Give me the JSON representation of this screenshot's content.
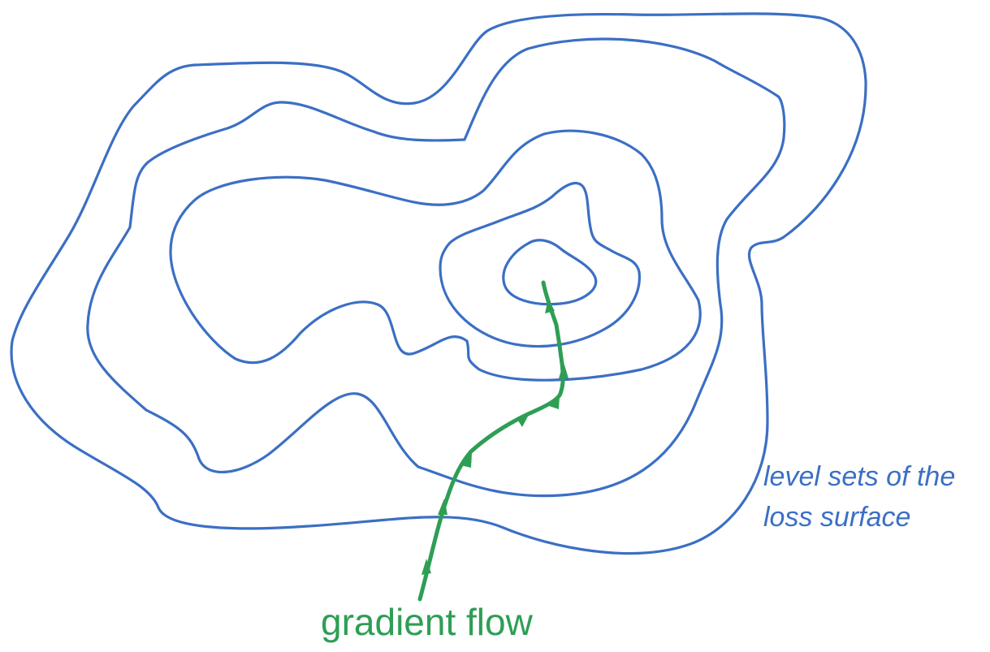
{
  "colors": {
    "contour": "#3b6fc4",
    "flow": "#2e9e55",
    "background": "#ffffff"
  },
  "labels": {
    "level_sets_line1": "level sets of the",
    "level_sets_line2": "loss surface",
    "gradient_flow": "gradient flow"
  }
}
